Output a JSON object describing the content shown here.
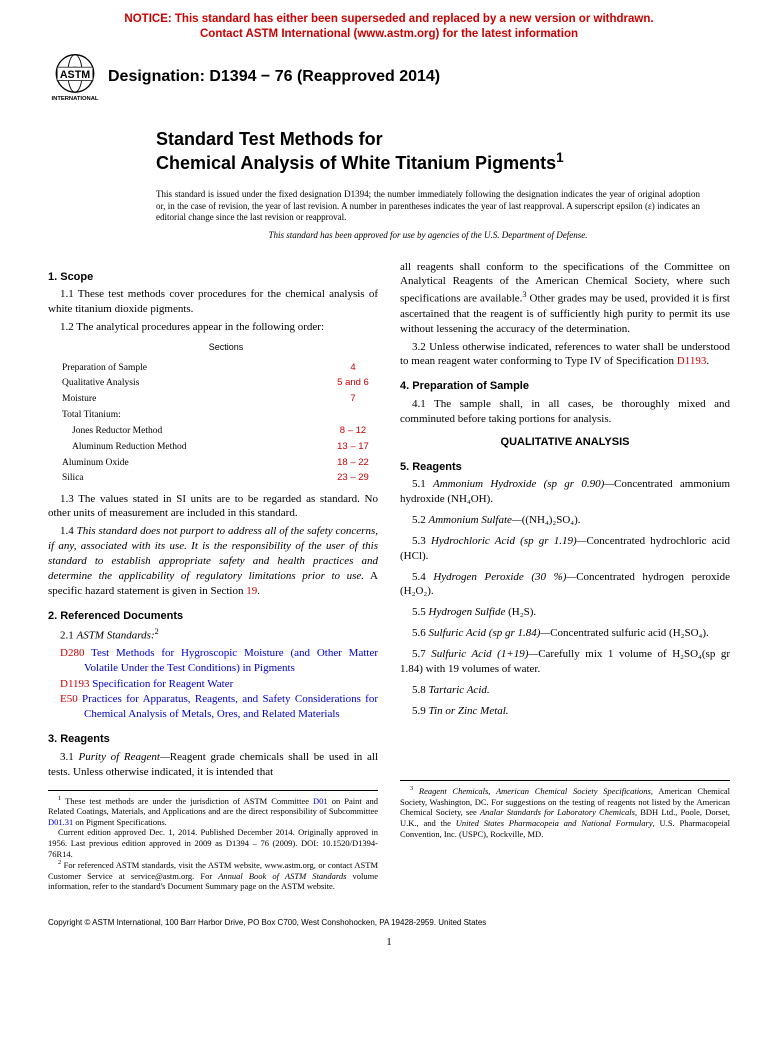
{
  "notice": {
    "line1": "NOTICE: This standard has either been superseded and replaced by a new version or withdrawn.",
    "line2": "Contact ASTM International (www.astm.org) for the latest information"
  },
  "logo_text_top": "ASTM",
  "logo_text_bottom": "INTERNATIONAL",
  "designation": "Designation: D1394 − 76 (Reapproved 2014)",
  "title_line1": "Standard Test Methods for",
  "title_line2": "Chemical Analysis of White Titanium Pigments",
  "disclaimer_text": "This standard is issued under the fixed designation D1394; the number immediately following the designation indicates the year of original adoption or, in the case of revision, the year of last revision. A number in parentheses indicates the year of last reapproval. A superscript epsilon (ε) indicates an editorial change since the last revision or reapproval.",
  "approved_text": "This standard has been approved for use by agencies of the U.S. Department of Defense.",
  "left": {
    "s1_heading": "1. Scope",
    "s1_1": "1.1 These test methods cover procedures for the chemical analysis of white titanium dioxide pigments.",
    "s1_2": "1.2 The analytical procedures appear in the following order:",
    "toc_header": "Sections",
    "toc": [
      {
        "label": "Preparation of Sample",
        "sec": "4",
        "indent": false
      },
      {
        "label": "Qualitative Analysis",
        "sec": "5 and 6",
        "indent": false
      },
      {
        "label": "Moisture",
        "sec": "7",
        "indent": false
      },
      {
        "label": "Total Titanium:",
        "sec": "",
        "indent": false
      },
      {
        "label": "Jones Reductor Method",
        "sec": "8 – 12",
        "indent": true
      },
      {
        "label": "Aluminum Reduction Method",
        "sec": "13 – 17",
        "indent": true
      },
      {
        "label": "Aluminum Oxide",
        "sec": "18 – 22",
        "indent": false
      },
      {
        "label": "Silica",
        "sec": "23 – 29",
        "indent": false
      }
    ],
    "s1_3": "1.3 The values stated in SI units are to be regarded as standard. No other units of measurement are included in this standard.",
    "s1_4a": "1.4 ",
    "s1_4b": "This standard does not purport to address all of the safety concerns, if any, associated with its use. It is the responsibility of the user of this standard to establish appropriate safety and health practices and determine the applicability of regulatory limitations prior to use.",
    "s1_4c": " A specific hazard statement is given in Section ",
    "s1_4d": "19",
    "s1_4e": ".",
    "s2_heading": "2. Referenced Documents",
    "s2_1": "2.1 ",
    "s2_1_label": "ASTM Standards:",
    "refs": [
      {
        "num": "D280",
        "text": " Test Methods for Hygroscopic Moisture (and Other Matter Volatile Under the Test Conditions) in Pigments"
      },
      {
        "num": "D1193",
        "text": " Specification for Reagent Water"
      },
      {
        "num": "E50",
        "text": " Practices for Apparatus, Reagents, and Safety Considerations for Chemical Analysis of Metals, Ores, and Related Materials"
      }
    ],
    "s3_heading": "3. Reagents",
    "s3_1a": "3.1 ",
    "s3_1_label": "Purity of Reagent—",
    "s3_1b": "Reagent grade chemicals shall be used in all tests. Unless otherwise indicated, it is intended that",
    "fn1": "These test methods are under the jurisdiction of ASTM Committee ",
    "fn1_link1": "D01",
    "fn1b": " on Paint and Related Coatings, Materials, and Applications and are the direct responsibility of Subcommittee ",
    "fn1_link2": "D01.31",
    "fn1c": " on Pigment Specifications.",
    "fn1d": "Current edition approved Dec. 1, 2014. Published December 2014. Originally approved in 1956. Last previous edition approved in 2009 as D1394 – 76 (2009). DOI: 10.1520/D1394-76R14.",
    "fn2": "For referenced ASTM standards, visit the ASTM website, www.astm.org, or contact ASTM Customer Service at service@astm.org. For ",
    "fn2i": "Annual Book of ASTM Standards",
    "fn2b": " volume information, refer to the standard's Document Summary page on the ASTM website."
  },
  "right": {
    "s3_cont": "all reagents shall conform to the specifications of the Committee on Analytical Reagents of the American Chemical Society, where such specifications are available.",
    "s3_cont2": " Other grades may be used, provided it is first ascertained that the reagent is of sufficiently high purity to permit its use without lessening the accuracy of the determination.",
    "s3_2a": "3.2 Unless otherwise indicated, references to water shall be understood to mean reagent water conforming to Type IV of Specification ",
    "s3_2_link": "D1193",
    "s3_2b": ".",
    "s4_heading": "4. Preparation of Sample",
    "s4_1": "4.1 The sample shall, in all cases, be thoroughly mixed and comminuted before taking portions for analysis.",
    "qual_heading": "QUALITATIVE ANALYSIS",
    "s5_heading": "5. Reagents",
    "reagents": [
      {
        "num": "5.1",
        "name": "Ammonium Hydroxide (sp gr 0.90)—",
        "desc": "Concentrated ammonium hydroxide (NH₄OH)."
      },
      {
        "num": "5.2",
        "name": "Ammonium Sulfate—",
        "desc": "((NH₄)₂SO₄)."
      },
      {
        "num": "5.3",
        "name": "Hydrochloric Acid (sp gr 1.19)—",
        "desc": "Concentrated hydrochloric acid (HCl)."
      },
      {
        "num": "5.4",
        "name": "Hydrogen Peroxide (30 %)—",
        "desc": "Concentrated hydrogen peroxide (H₂O₂)."
      },
      {
        "num": "5.5",
        "name": "Hydrogen Sulfide ",
        "desc": "(H₂S)."
      },
      {
        "num": "5.6",
        "name": "Sulfuric Acid (sp gr 1.84)—",
        "desc": "Concentrated sulfuric acid (H₂SO₄)."
      },
      {
        "num": "5.7",
        "name": "Sulfuric Acid (1+19)—",
        "desc": "Carefully mix 1 volume of H₂SO₄(sp gr 1.84) with 19 volumes of water."
      },
      {
        "num": "5.8",
        "name": "Tartaric Acid.",
        "desc": ""
      },
      {
        "num": "5.9",
        "name": "Tin or Zinc Metal.",
        "desc": ""
      }
    ],
    "fn3a": "Reagent Chemicals, American Chemical Society Specifications",
    "fn3b": ", American Chemical Society, Washington, DC. For suggestions on the testing of reagents not listed by the American Chemical Society, see ",
    "fn3c": "Analar Standards for Laboratory Chemicals",
    "fn3d": ", BDH Ltd., Poole, Dorset, U.K., and the ",
    "fn3e": "United States Pharmacopeia and National Formulary",
    "fn3f": ", U.S. Pharmacopeial Convention, Inc. (USPC), Rockville, MD."
  },
  "copyright": "Copyright © ASTM International, 100 Barr Harbor Drive, PO Box C700, West Conshohocken, PA 19428-2959. United States",
  "pagenum": "1"
}
